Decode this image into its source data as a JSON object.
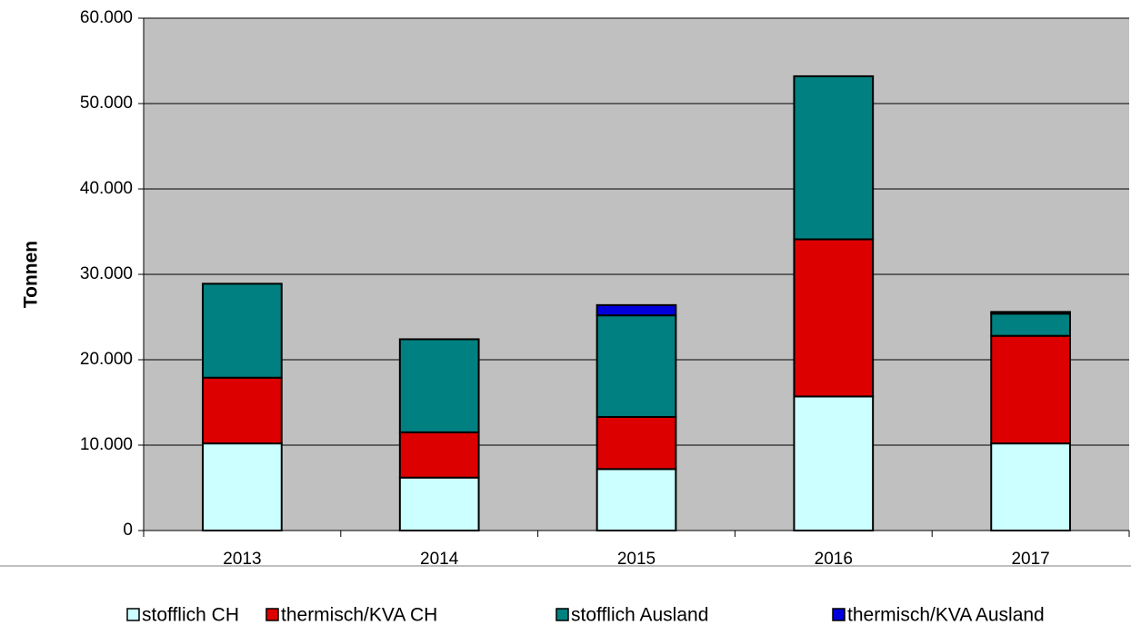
{
  "chart_data": {
    "type": "stacked_bar",
    "y_label": "Tonnen",
    "categories": [
      "2013",
      "2014",
      "2015",
      "2016",
      "2017"
    ],
    "series": [
      {
        "name": "stofflich CH",
        "color": "#ccffff",
        "values": [
          10200,
          6200,
          7200,
          15700,
          10200
        ]
      },
      {
        "name": "thermisch/KVA CH",
        "color": "#dd0000",
        "values": [
          7700,
          5300,
          6100,
          18400,
          12600
        ]
      },
      {
        "name": "stofflich Ausland",
        "color": "#008080",
        "values": [
          11000,
          10900,
          11900,
          19100,
          2600
        ]
      },
      {
        "name": "thermisch/KVA Ausland",
        "color": "#0000dd",
        "values": [
          0,
          0,
          1200,
          0,
          200
        ]
      }
    ],
    "ylim": [
      0,
      60000
    ],
    "yticks": [
      0,
      {
        "value": 10000,
        "label": "10.000"
      },
      {
        "value": 20000,
        "label": "20.000"
      },
      {
        "value": 30000,
        "label": "30.000"
      },
      {
        "value": 40000,
        "label": "40.000"
      },
      {
        "value": 50000,
        "label": "50.000"
      },
      {
        "value": 60000,
        "label": "60.000"
      }
    ],
    "grid": true,
    "plot_background": "#c0c0c0",
    "legend": "bottom"
  }
}
